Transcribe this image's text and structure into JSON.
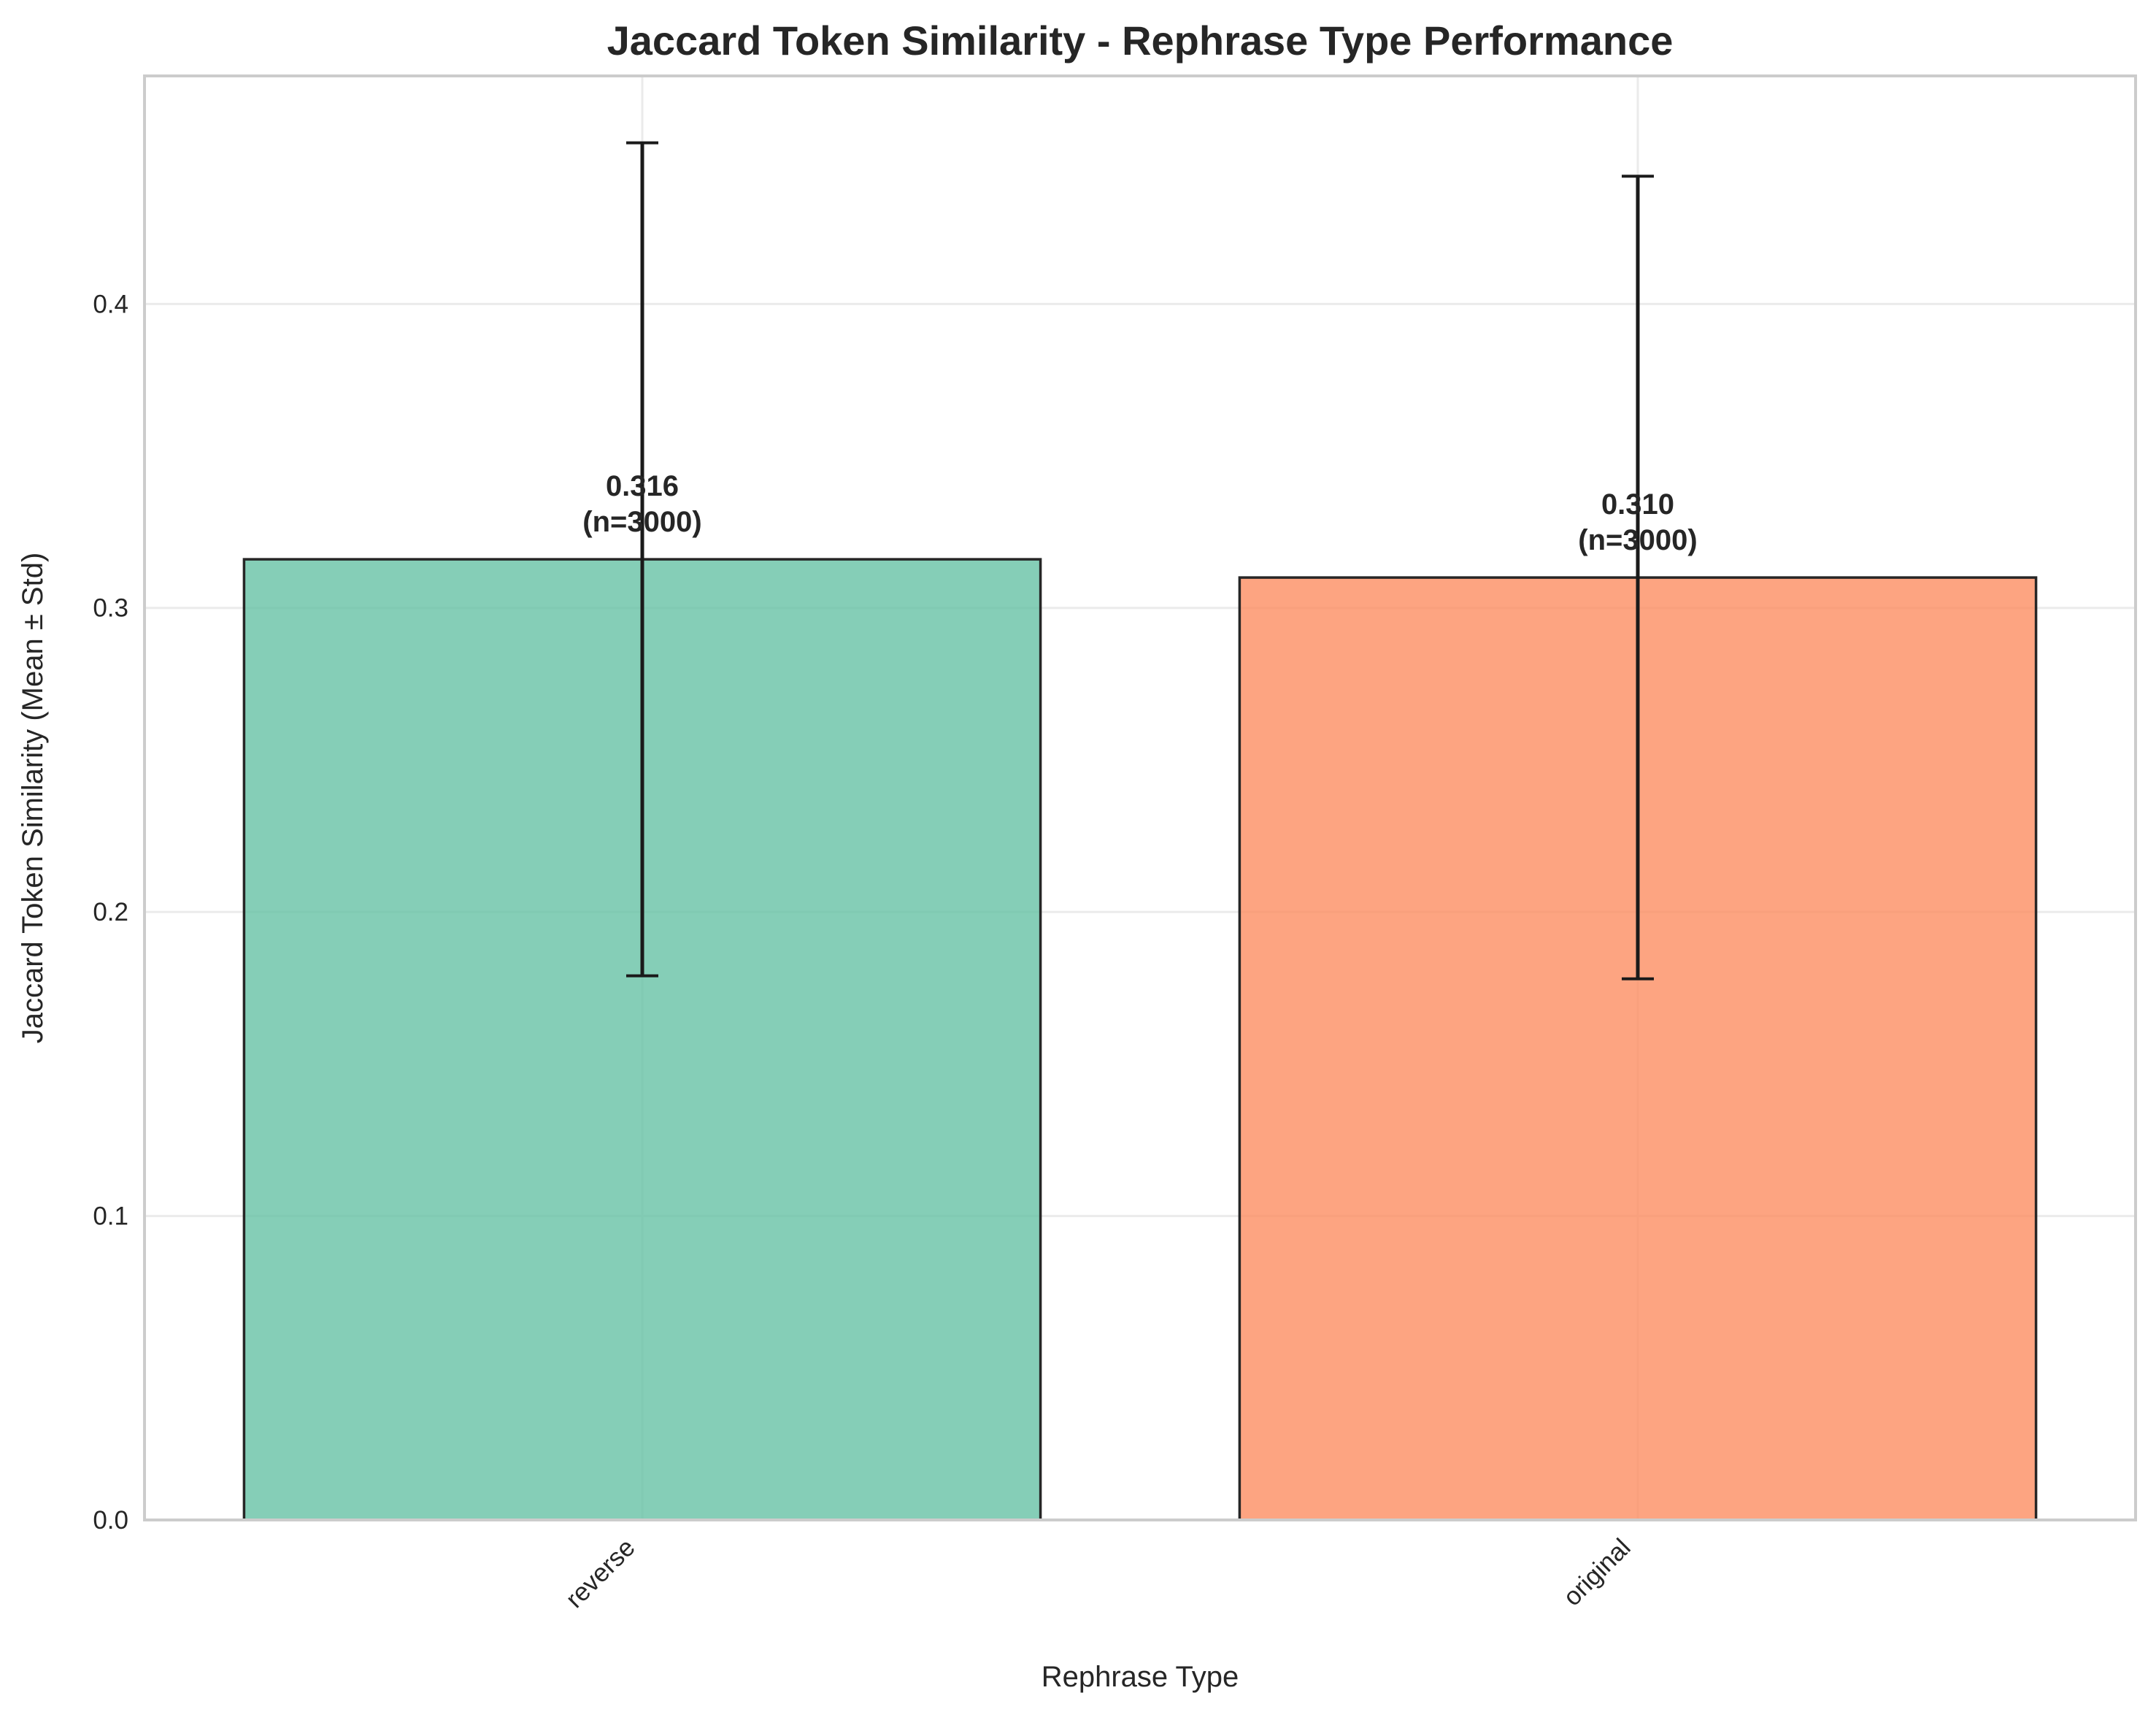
{
  "chart_data": {
    "type": "bar",
    "title": "Jaccard Token Similarity - Rephrase Type Performance",
    "xlabel": "Rephrase Type",
    "ylabel": "Jaccard Token Similarity (Mean ± Std)",
    "ylim": [
      0,
      0.475
    ],
    "yticks": [
      "0.0",
      "0.1",
      "0.2",
      "0.3",
      "0.4"
    ],
    "categories": [
      "reverse",
      "original"
    ],
    "values": [
      0.316,
      0.31
    ],
    "error": [
      0.137,
      0.132
    ],
    "value_labels": [
      "0.316",
      "0.310"
    ],
    "count_labels": [
      "(n=3000)",
      "(n=3000)"
    ],
    "colors": [
      "#66c2a5",
      "#fc8d62"
    ],
    "grid": true,
    "legend": "none"
  }
}
